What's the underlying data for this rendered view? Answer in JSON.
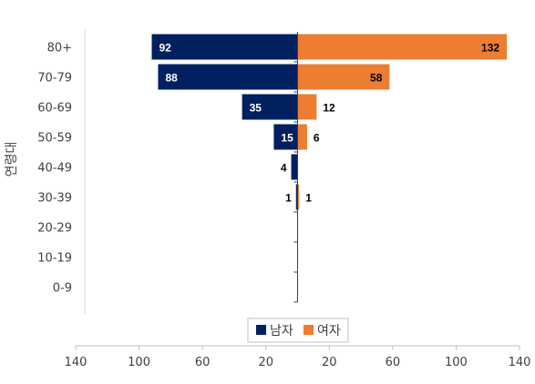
{
  "chart_data": {
    "type": "bar",
    "orientation": "horizontal-population-pyramid",
    "ylabel": "연령대",
    "categories": [
      "80+",
      "70-79",
      "60-69",
      "50-59",
      "40-49",
      "30-39",
      "20-29",
      "10-19",
      "0-9"
    ],
    "series": [
      {
        "name": "남자",
        "values": [
          92,
          88,
          35,
          15,
          4,
          1,
          0,
          0,
          0
        ],
        "color": "#002060"
      },
      {
        "name": "여자",
        "values": [
          132,
          58,
          12,
          6,
          0,
          1,
          0,
          0,
          0
        ],
        "color": "#ED7D31"
      }
    ],
    "x_ticks": [
      "140",
      "100",
      "60",
      "20",
      "20",
      "60",
      "100",
      "140"
    ],
    "xlim": [
      -140,
      140
    ],
    "legend_position": "bottom",
    "grid": false
  }
}
